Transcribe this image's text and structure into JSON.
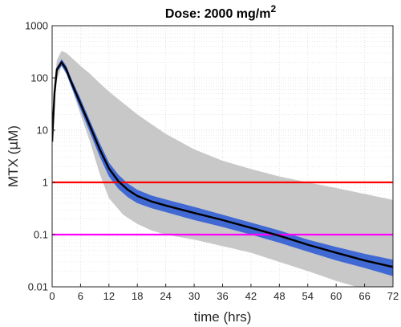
{
  "chart_data": {
    "type": "line",
    "title": "Dose: 2000 mg/m",
    "title_superscript": "2",
    "xlabel": "time (hrs)",
    "ylabel_prefix": "MTX (",
    "ylabel_mu": "μ",
    "ylabel_suffix": "M)",
    "xlim": [
      0,
      72
    ],
    "ylim": [
      0.01,
      1000
    ],
    "yscale": "log",
    "x_ticks": [
      0,
      6,
      12,
      18,
      24,
      30,
      36,
      42,
      48,
      54,
      60,
      66,
      72
    ],
    "y_ticks": [
      0.01,
      0.1,
      1,
      10,
      100,
      1000
    ],
    "y_tick_labels": [
      "0.01",
      "0.1",
      "1",
      "10",
      "100",
      "1000"
    ],
    "grid": "dotted, major and minor on log y",
    "colors": {
      "median": "#000000",
      "inner_band": "#4169d4",
      "outer_band": "#c8c8c8",
      "threshold_1": "#ff0000",
      "threshold_2": "#ff00ff"
    },
    "thresholds": [
      {
        "y": 1,
        "color": "#ff0000"
      },
      {
        "y": 0.1,
        "color": "#ff00ff"
      }
    ],
    "series": [
      {
        "role": "outer-band",
        "x": [
          0,
          0.5,
          1,
          2,
          3,
          4,
          6,
          8,
          10,
          12,
          15,
          18,
          21,
          24,
          30,
          36,
          42,
          48,
          54,
          60,
          66,
          72
        ],
        "upper": [
          6,
          80,
          220,
          330,
          300,
          250,
          170,
          120,
          80,
          55,
          33,
          20,
          13,
          8.5,
          4.3,
          2.6,
          1.8,
          1.3,
          1.0,
          0.78,
          0.6,
          0.46
        ],
        "lower": [
          6,
          30,
          90,
          170,
          130,
          70,
          20,
          6,
          1.5,
          0.5,
          0.24,
          0.16,
          0.12,
          0.1,
          0.08,
          0.06,
          0.045,
          0.03,
          0.02,
          0.013,
          0.009,
          0.006
        ]
      },
      {
        "role": "inner-band",
        "x": [
          0,
          0.5,
          1,
          2,
          3,
          4,
          6,
          8,
          10,
          12,
          14,
          16,
          18,
          21,
          24,
          30,
          36,
          42,
          48,
          54,
          60,
          66,
          72
        ],
        "upper": [
          6,
          60,
          160,
          230,
          170,
          100,
          40,
          15,
          5.8,
          2.4,
          1.4,
          0.95,
          0.72,
          0.56,
          0.47,
          0.34,
          0.24,
          0.17,
          0.12,
          0.08,
          0.058,
          0.043,
          0.033
        ],
        "lower": [
          6,
          45,
          130,
          170,
          120,
          70,
          25,
          9,
          3.2,
          1.3,
          0.75,
          0.52,
          0.4,
          0.32,
          0.27,
          0.19,
          0.14,
          0.1,
          0.07,
          0.047,
          0.032,
          0.023,
          0.016
        ]
      },
      {
        "role": "median",
        "x": [
          0,
          0.5,
          1,
          2,
          3,
          4,
          6,
          8,
          10,
          12,
          14,
          16,
          18,
          21,
          24,
          30,
          36,
          42,
          48,
          54,
          60,
          66,
          72
        ],
        "y": [
          6,
          52,
          145,
          200,
          145,
          85,
          32,
          12,
          4.4,
          1.85,
          1.05,
          0.72,
          0.55,
          0.43,
          0.36,
          0.26,
          0.19,
          0.135,
          0.095,
          0.064,
          0.045,
          0.032,
          0.024
        ]
      }
    ]
  }
}
